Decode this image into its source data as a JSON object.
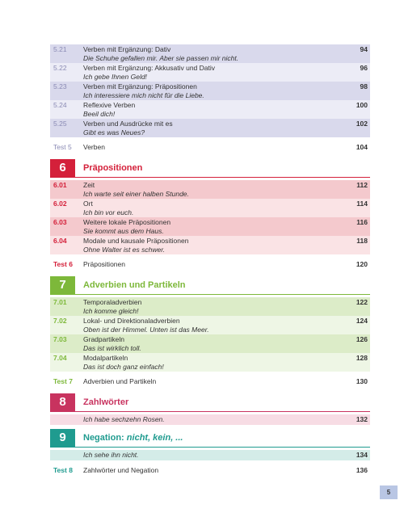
{
  "sections": [
    {
      "entries": [
        {
          "number": "5.21",
          "title": "Verben mit Ergänzung: Dativ",
          "example": "Die Schuhe gefallen mir. Aber sie passen mir nicht.",
          "page": 94
        },
        {
          "number": "5.22",
          "title": "Verben mit Ergänzung: Akkusativ und Dativ",
          "example": "Ich gebe Ihnen Geld!",
          "page": 96
        },
        {
          "number": "5.23",
          "title": "Verben mit Ergänzung: Präpositionen",
          "example": "Ich interessiere mich nicht für die Liebe.",
          "page": 98
        },
        {
          "number": "5.24",
          "title": "Reflexive Verben",
          "example": "Beeil dich!",
          "page": 100
        },
        {
          "number": "5.25",
          "title": "Verben und Ausdrücke mit es",
          "example": "Gibt es was Neues?",
          "page": 102
        }
      ],
      "test": {
        "label": "Test 5",
        "title": "Verben",
        "page": 104
      }
    },
    {
      "number": "6",
      "title": "Präpositionen",
      "entries": [
        {
          "number": "6.01",
          "title": "Zeit",
          "example": "Ich warte seit einer halben Stunde.",
          "page": 112
        },
        {
          "number": "6.02",
          "title": "Ort",
          "example": "Ich bin vor euch.",
          "page": 114
        },
        {
          "number": "6.03",
          "title": "Weitere lokale Präpositionen",
          "example": "Sie kommt aus dem Haus.",
          "page": 116
        },
        {
          "number": "6.04",
          "title": "Modale und kausale Präpositionen",
          "example": "Ohne Walter ist es schwer.",
          "page": 118
        }
      ],
      "test": {
        "label": "Test 6",
        "title": "Präpositionen",
        "page": 120
      }
    },
    {
      "number": "7",
      "title": "Adverbien und Partikeln",
      "entries": [
        {
          "number": "7.01",
          "title": "Temporaladverbien",
          "example": "Ich komme gleich!",
          "page": 122
        },
        {
          "number": "7.02",
          "title": "Lokal- und Direktionaladverbien",
          "example": "Oben ist der Himmel. Unten ist das Meer.",
          "page": 124
        },
        {
          "number": "7.03",
          "title": "Gradpartikeln",
          "example": "Das ist wirklich toll.",
          "page": 126
        },
        {
          "number": "7.04",
          "title": "Modalpartikeln",
          "example": "Das ist doch ganz einfach!",
          "page": 128
        }
      ],
      "test": {
        "label": "Test 7",
        "title": "Adverbien und Partikeln",
        "page": 130
      }
    },
    {
      "number": "8",
      "title": "Zahlwörter",
      "entries": [
        {
          "example": "Ich habe sechzehn Rosen.",
          "page": 132
        }
      ]
    },
    {
      "number": "9",
      "title": "Negation:",
      "title_emphasis": "nicht, kein, ...",
      "entries": [
        {
          "example": "Ich sehe ihn nicht.",
          "page": 134
        }
      ],
      "test": {
        "label": "Test 8",
        "title": "Zahlwörter und Negation",
        "page": 136
      }
    }
  ],
  "page_number": 5
}
